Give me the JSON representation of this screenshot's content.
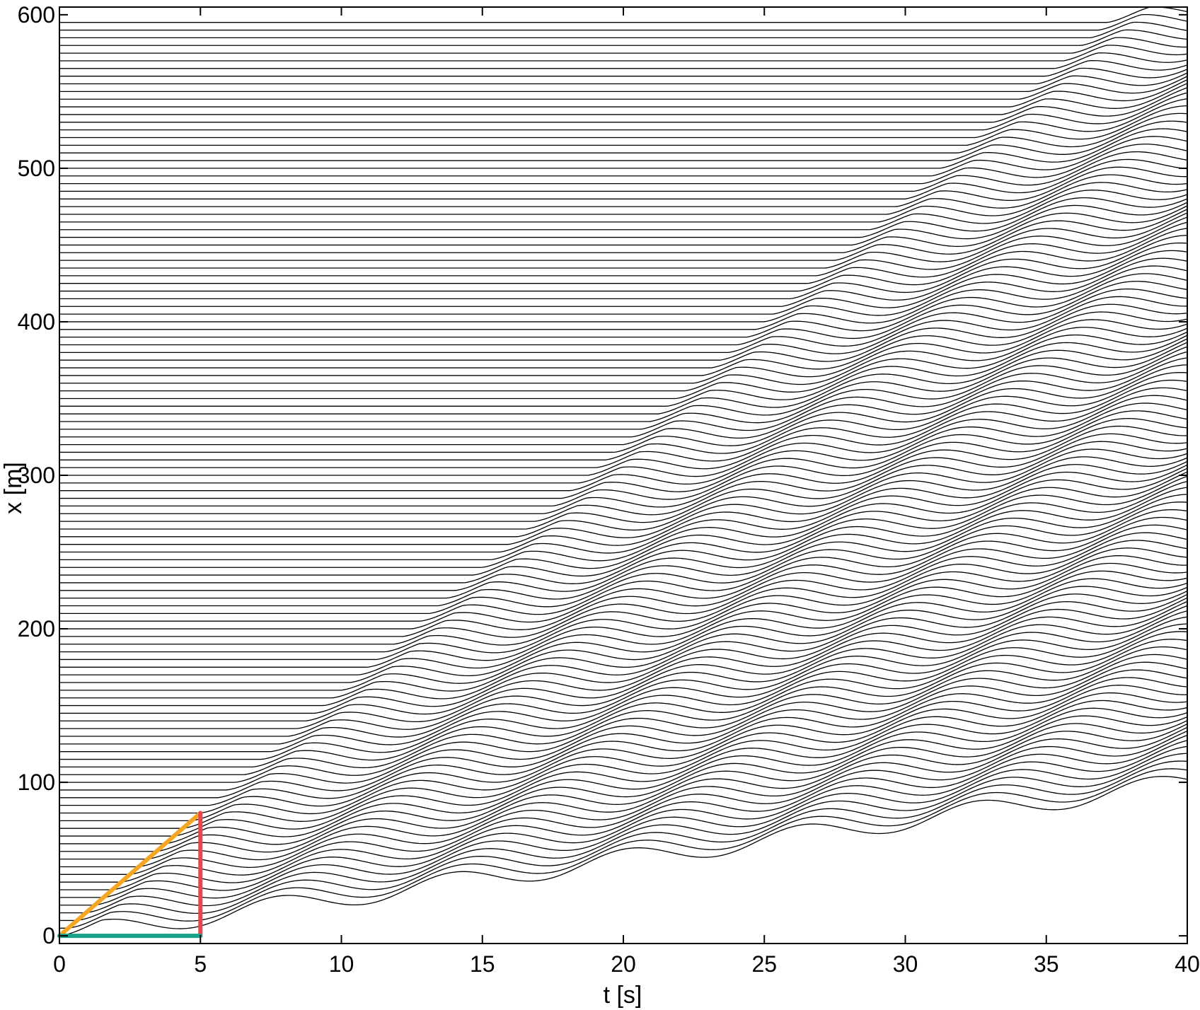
{
  "chart_data": {
    "type": "line",
    "title": "",
    "xlabel": "t [s]",
    "ylabel": "x [m]",
    "xlim": [
      0,
      40
    ],
    "ylim": [
      -5,
      605
    ],
    "xticks": [
      0,
      5,
      10,
      15,
      20,
      25,
      30,
      35,
      40
    ],
    "yticks": [
      0,
      100,
      200,
      300,
      400,
      500,
      600
    ],
    "grid": false,
    "legend": "none",
    "trajectories": {
      "count": 120,
      "initial_positions_m": {
        "start": 0,
        "step": 5
      },
      "wave": {
        "propagation_speed_m_per_s": 16,
        "amplitude_m": 6.5,
        "period_s": 6.2,
        "mean_speed_m_per_s": 2.5,
        "lag_per_vehicle_s": 0.31
      },
      "color": "#000000"
    },
    "overlays": [
      {
        "name": "hypotenuse",
        "color": "#F5A623",
        "from": [
          0,
          0
        ],
        "to": [
          5,
          80
        ]
      },
      {
        "name": "vertical-leg",
        "color": "#E8474C",
        "from": [
          5,
          0
        ],
        "to": [
          5,
          80
        ]
      },
      {
        "name": "horizontal-leg",
        "color": "#16A38A",
        "from": [
          0,
          0
        ],
        "to": [
          5,
          0
        ]
      }
    ]
  }
}
